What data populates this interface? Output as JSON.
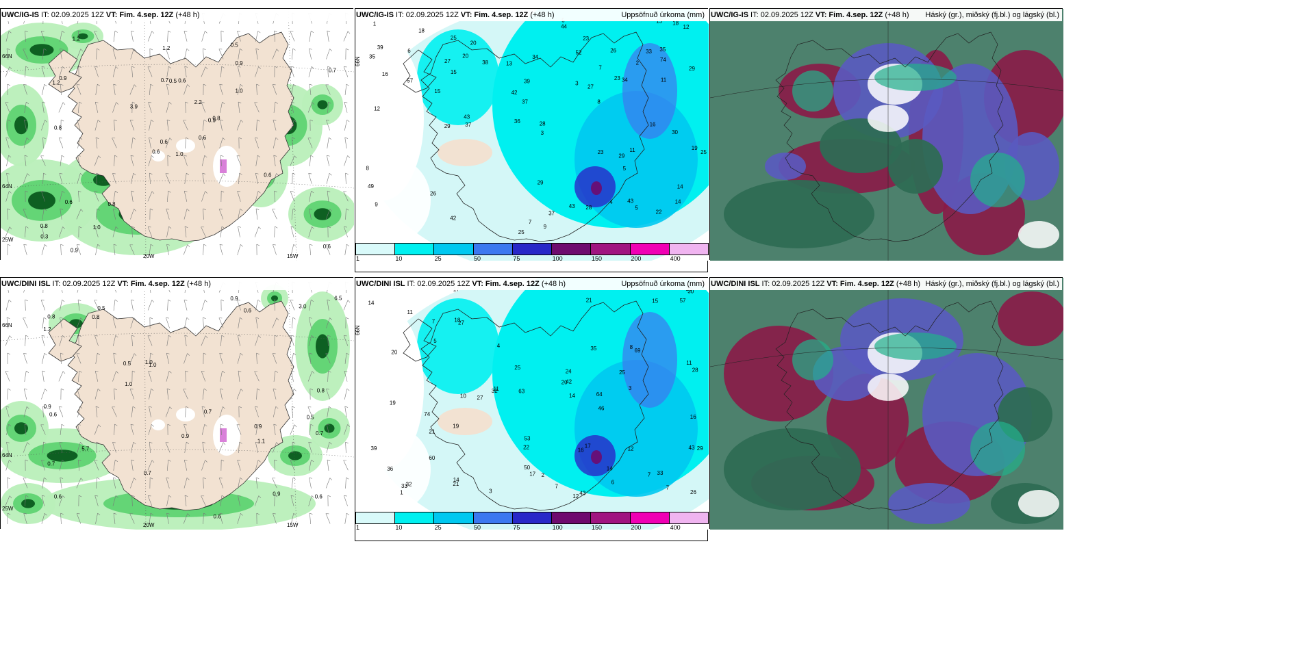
{
  "rows": [
    {
      "model": "UWC/IG-IS",
      "panels": [
        {
          "kind": "wind",
          "title_rest": "IT: 02.09.2025 12Z",
          "vt_label": "VT: Fim. 4.sep. 12Z",
          "lead": "(+48 h)",
          "right": ""
        },
        {
          "kind": "precip",
          "title_rest": "IT: 02.09.2025 12Z",
          "vt_label": "VT: Fim. 4.sep. 12Z",
          "lead": "(+48 h)",
          "right": "Uppsöfnuð úrkoma (mm)"
        },
        {
          "kind": "cloud",
          "title_rest": "IT: 02.09.2025 12Z",
          "vt_label": "VT: Fim. 4.sep. 12Z",
          "lead": "(+48 h)",
          "right": "Háský (gr.), miðský (fj.bl.) og lágský (bl.)"
        }
      ]
    },
    {
      "model": "UWC/DINI ISL",
      "panels": [
        {
          "kind": "wind",
          "title_rest": "IT: 02.09.2025 12Z",
          "vt_label": "VT: Fim. 4.sep. 12Z",
          "lead": "(+48 h)",
          "right": ""
        },
        {
          "kind": "precip",
          "title_rest": "IT: 02.09.2025 12Z",
          "vt_label": "VT: Fim. 4.sep. 12Z",
          "lead": "(+48 h)",
          "right": "Uppsöfnuð úrkoma (mm)"
        },
        {
          "kind": "cloud",
          "title_rest": "IT: 02.09.2025 12Z",
          "vt_label": "VT: Fim. 4.sep. 12Z",
          "lead": "(+48 h)",
          "right": "Háský (gr.), miðský (fj.bl.) og lágský (bl.)"
        }
      ]
    }
  ],
  "axis_labels": {
    "lat66": "66N",
    "lat64": "64N",
    "lon15": "15W",
    "lon20": "20W",
    "lon25": "25W"
  },
  "colorbar": {
    "ticks": [
      "1",
      "10",
      "25",
      "50",
      "75",
      "100",
      "150",
      "200",
      "400"
    ],
    "colors": [
      "#d9fafa",
      "#00f0f0",
      "#00c8f0",
      "#3c78f0",
      "#2828c8",
      "#6e0a6e",
      "#a01480",
      "#f000b4",
      "#f0b4f0"
    ]
  },
  "colors": {
    "land": "#f2e2d2",
    "green_light": "#b9efb9",
    "green_mid": "#5ad26e",
    "green_dark": "#0a5a1e",
    "precip_light": "#d4f7f7",
    "precip_cyan": "#00f0f0",
    "precip_blue": "#00c8f0",
    "cloud_high": "#2e6b54",
    "cloud_mid": "#8b1a47",
    "cloud_low": "#5a5ac0",
    "cloud_teal": "#22b08a"
  },
  "labels": {
    "wind_top": [
      "1.0",
      "1.2",
      "0.6",
      "0.8",
      "0.9",
      "0.8",
      "0.5",
      "0.6",
      "0.9",
      "0.6",
      "1.2",
      "0.6",
      "0.8",
      "0.7",
      "0.6",
      "1.0",
      "0.9",
      "0.7",
      "2.2",
      "0.6",
      "3.9",
      "0.3",
      "1.0",
      "0.5",
      "0.8",
      "0.6",
      "0.9",
      "1.2"
    ],
    "wind_bot": [
      "0.9",
      "0.5",
      "0.6",
      "0.5",
      "1.0",
      "0.9",
      "0.7",
      "0.6",
      "0.5",
      "0.6",
      "1.2",
      "0.9",
      "0.8",
      "0.6",
      "0.7",
      "0.8",
      "0.9",
      "0.7",
      "1.0",
      "5.7",
      "6.5",
      "3.0",
      "1.0",
      "0.7",
      "0.9",
      "0.8",
      "1.1",
      "0.6"
    ],
    "precip_top": [
      "16",
      "15",
      "8",
      "7",
      "33",
      "25",
      "23",
      "37",
      "35",
      "25",
      "19",
      "20",
      "23",
      "26",
      "12",
      "42",
      "43",
      "13",
      "22",
      "43",
      "5",
      "30",
      "37",
      "29",
      "26",
      "15",
      "74",
      "23",
      "18",
      "29",
      "8",
      "28",
      "18",
      "57",
      "39",
      "25",
      "38",
      "52",
      "44",
      "49",
      "34",
      "27",
      "42",
      "43",
      "37",
      "29",
      "35",
      "16",
      "14",
      "11",
      "39",
      "27",
      "36",
      "29",
      "34",
      "20",
      "9",
      "5",
      "4",
      "3",
      "2",
      "1",
      "11",
      "12",
      "9",
      "6",
      "3",
      "5",
      "7",
      "15",
      "28",
      "14"
    ],
    "precip_bot": [
      "3",
      "12",
      "14",
      "14",
      "17",
      "11",
      "10",
      "7",
      "6",
      "4",
      "15",
      "17",
      "11",
      "22",
      "21",
      "20",
      "20",
      "21",
      "27",
      "14",
      "16",
      "30",
      "24",
      "33",
      "69",
      "74",
      "39",
      "21",
      "31",
      "46",
      "63",
      "43",
      "53",
      "57",
      "60",
      "64",
      "43",
      "36",
      "35",
      "33",
      "42",
      "25",
      "29",
      "32",
      "27",
      "17",
      "16",
      "7",
      "7",
      "50",
      "26",
      "11",
      "26",
      "12",
      "19",
      "8",
      "32",
      "25",
      "18",
      "19",
      "7",
      "6",
      "5",
      "3",
      "2",
      "1",
      "14",
      "28"
    ]
  }
}
